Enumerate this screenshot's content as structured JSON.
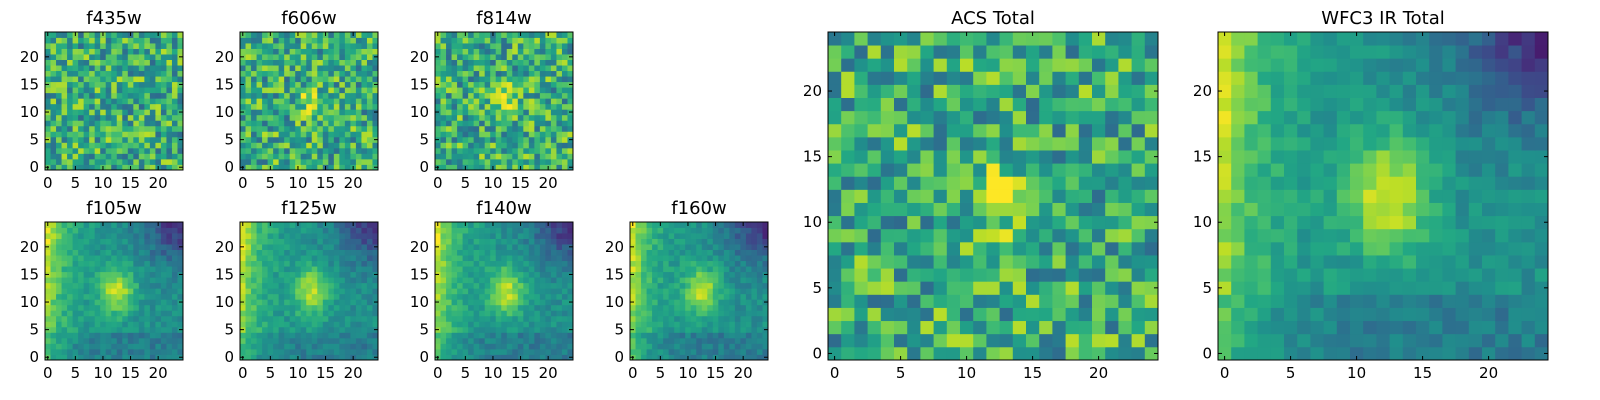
{
  "chart_data": [
    {
      "id": "f435w",
      "type": "heatmap",
      "title": "f435w",
      "colormap": "viridis",
      "xlim": [
        0,
        24
      ],
      "ylim": [
        0,
        24
      ],
      "xticks": [
        0,
        5,
        10,
        15,
        20
      ],
      "yticks": [
        0,
        5,
        10,
        15,
        20
      ],
      "grid_size": 25,
      "blob": {
        "x": 12,
        "y": 12,
        "amplitude": 0.05
      }
    },
    {
      "id": "f606w",
      "type": "heatmap",
      "title": "f606w",
      "colormap": "viridis",
      "xlim": [
        0,
        24
      ],
      "ylim": [
        0,
        24
      ],
      "xticks": [
        0,
        5,
        10,
        15,
        20
      ],
      "yticks": [
        0,
        5,
        10,
        15,
        20
      ],
      "grid_size": 25,
      "blob": {
        "x": 12,
        "y": 12,
        "amplitude": 0.2
      }
    },
    {
      "id": "f814w",
      "type": "heatmap",
      "title": "f814w",
      "colormap": "viridis",
      "xlim": [
        0,
        24
      ],
      "ylim": [
        0,
        24
      ],
      "xticks": [
        0,
        5,
        10,
        15,
        20
      ],
      "yticks": [
        0,
        5,
        10,
        15,
        20
      ],
      "grid_size": 25,
      "blob": {
        "x": 12.5,
        "y": 11.5,
        "amplitude": 0.35
      }
    },
    {
      "id": "f105w",
      "type": "heatmap",
      "title": "f105w",
      "colormap": "viridis",
      "xlim": [
        0,
        24
      ],
      "ylim": [
        0,
        24
      ],
      "xticks": [
        0,
        5,
        10,
        15,
        20
      ],
      "yticks": [
        0,
        5,
        10,
        15,
        20
      ],
      "grid_size": 25,
      "blob": {
        "x": 12.5,
        "y": 12,
        "amplitude": 0.4
      }
    },
    {
      "id": "f125w",
      "type": "heatmap",
      "title": "f125w",
      "colormap": "viridis",
      "xlim": [
        0,
        24
      ],
      "ylim": [
        0,
        24
      ],
      "xticks": [
        0,
        5,
        10,
        15,
        20
      ],
      "yticks": [
        0,
        5,
        10,
        15,
        20
      ],
      "grid_size": 25,
      "blob": {
        "x": 12.5,
        "y": 12,
        "amplitude": 0.4
      }
    },
    {
      "id": "f140w",
      "type": "heatmap",
      "title": "f140w",
      "colormap": "viridis",
      "xlim": [
        0,
        24
      ],
      "ylim": [
        0,
        24
      ],
      "xticks": [
        0,
        5,
        10,
        15,
        20
      ],
      "yticks": [
        0,
        5,
        10,
        15,
        20
      ],
      "grid_size": 25,
      "blob": {
        "x": 12.5,
        "y": 12,
        "amplitude": 0.4
      }
    },
    {
      "id": "f160w",
      "type": "heatmap",
      "title": "f160w",
      "colormap": "viridis",
      "xlim": [
        0,
        24
      ],
      "ylim": [
        0,
        24
      ],
      "xticks": [
        0,
        5,
        10,
        15,
        20
      ],
      "yticks": [
        0,
        5,
        10,
        15,
        20
      ],
      "grid_size": 25,
      "blob": {
        "x": 12.5,
        "y": 12,
        "amplitude": 0.4
      }
    },
    {
      "id": "acs_total",
      "type": "heatmap",
      "title": "ACS Total",
      "colormap": "viridis",
      "xlim": [
        0,
        24
      ],
      "ylim": [
        0,
        24
      ],
      "xticks": [
        0,
        5,
        10,
        15,
        20
      ],
      "yticks": [
        0,
        5,
        10,
        15,
        20
      ],
      "grid_size": 25,
      "blob": {
        "x": 12.5,
        "y": 12,
        "amplitude": 0.3
      }
    },
    {
      "id": "wfc3_ir_total",
      "type": "heatmap",
      "title": "WFC3 IR Total",
      "colormap": "viridis",
      "xlim": [
        0,
        24
      ],
      "ylim": [
        0,
        24
      ],
      "xticks": [
        0,
        5,
        10,
        15,
        20
      ],
      "yticks": [
        0,
        5,
        10,
        15,
        20
      ],
      "grid_size": 25,
      "blob": {
        "x": 12.5,
        "y": 12,
        "amplitude": 0.45
      }
    }
  ]
}
